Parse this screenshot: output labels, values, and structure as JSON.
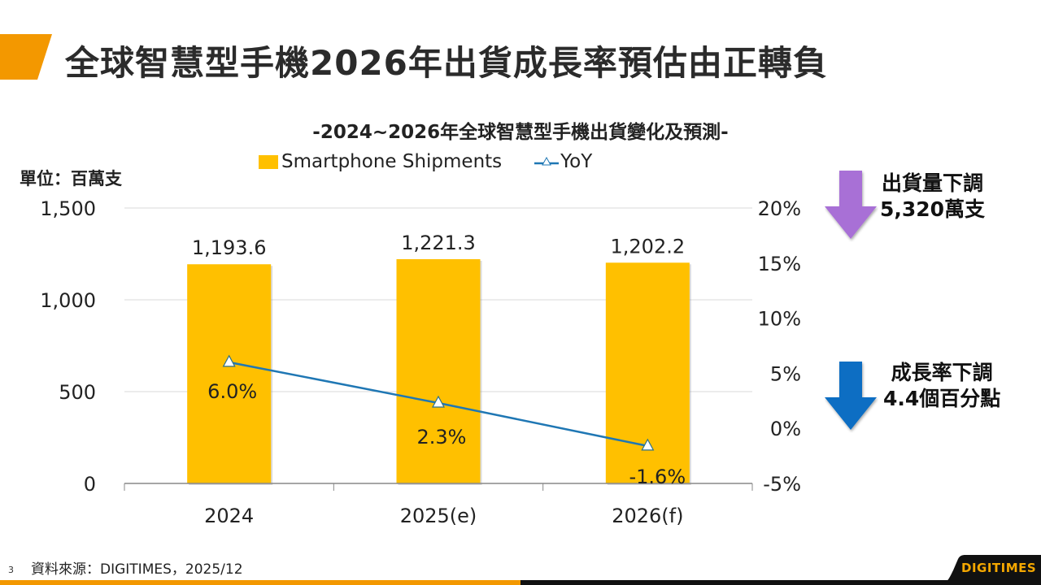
{
  "slide": {
    "title": "全球智慧型手機2026年出貨成長率預估由正轉負",
    "page_number": "3",
    "source": "資料來源：DIGITIMES，2025/12",
    "logo": "DIGITIMES"
  },
  "colors": {
    "accent_orange": "#F39800",
    "bar": "#FFC000",
    "line": "#1F77B4",
    "arrow_purple": "#A86FD6",
    "arrow_blue": "#0B6EC3"
  },
  "unit_label": "單位：百萬支",
  "callouts": [
    {
      "line1": "出貨量下調",
      "line2": "5,320萬支",
      "arrow": "purple-down-arrow"
    },
    {
      "line1": "成長率下調",
      "line2": "4.4個百分點",
      "arrow": "blue-down-arrow"
    }
  ],
  "chart_data": {
    "type": "bar",
    "title": "-2024~2026年全球智慧型手機出貨變化及預測-",
    "categories": [
      "2024",
      "2025(e)",
      "2026(f)"
    ],
    "series": [
      {
        "name": "Smartphone Shipments",
        "type": "bar",
        "axis": "left",
        "values": [
          1193.6,
          1221.3,
          1202.2
        ],
        "labels": [
          "1,193.6",
          "1,221.3",
          "1,202.2"
        ]
      },
      {
        "name": "YoY",
        "type": "line",
        "axis": "right",
        "marker": "triangle",
        "values": [
          6.0,
          2.3,
          -1.6
        ],
        "labels": [
          "6.0%",
          "2.3%",
          "-1.6%"
        ]
      }
    ],
    "legend": [
      "Smartphone Shipments",
      "YoY"
    ],
    "legend_position": "top",
    "ylabel": "單位：百萬支",
    "ylim": [
      0,
      1500
    ],
    "yticks": [
      0,
      500,
      1000,
      1500
    ],
    "ytick_labels": [
      "0",
      "500",
      "1,000",
      "1,500"
    ],
    "y2lim": [
      -5,
      20
    ],
    "y2ticks": [
      -5,
      0,
      5,
      10,
      15,
      20
    ],
    "y2tick_labels": [
      "-5%",
      "0%",
      "5%",
      "10%",
      "15%",
      "20%"
    ],
    "grid": true
  }
}
